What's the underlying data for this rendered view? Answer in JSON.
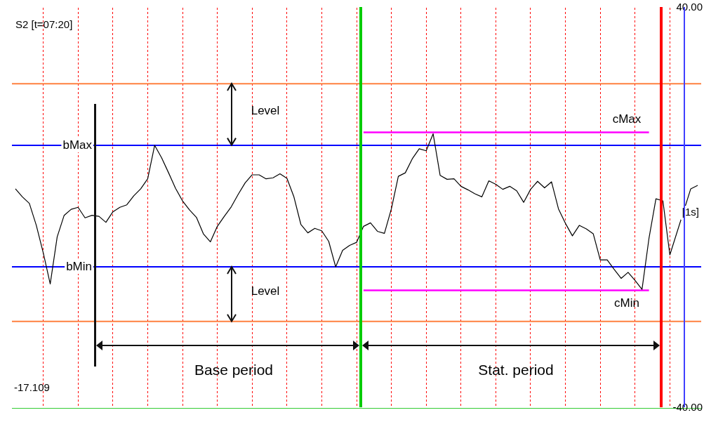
{
  "chart_data": {
    "type": "line",
    "categories": [
      null,
      null,
      null,
      null,
      null,
      null,
      null,
      null,
      null,
      null,
      null,
      null,
      null,
      null,
      null,
      null,
      null,
      null,
      null,
      null,
      null,
      null,
      null,
      null,
      null,
      null,
      null,
      null,
      null,
      null,
      null,
      null,
      null,
      null,
      null,
      null,
      null,
      null,
      null,
      null,
      null,
      null,
      null,
      null,
      null,
      null,
      null,
      null,
      null,
      null,
      null,
      null,
      null,
      null,
      null,
      null,
      null,
      null,
      null,
      null,
      null,
      null,
      null,
      null,
      null,
      null,
      null,
      null,
      null,
      null,
      null,
      null,
      null,
      null,
      null,
      null,
      null,
      null,
      null,
      null,
      null,
      null,
      null,
      null,
      null,
      null,
      null,
      null,
      null,
      null,
      null,
      null,
      null,
      null,
      null,
      null,
      null,
      null,
      null
    ],
    "ylim": [
      -40,
      40
    ],
    "yticks": [
      {
        "value": 40,
        "label": "40.00"
      },
      {
        "value": -40,
        "label": "-40.00"
      }
    ],
    "tick_labels": "y",
    "grid": "x",
    "legend": false,
    "marker": "none",
    "series": [
      {
        "color": "#000000",
        "values": [
          3.8,
          2.2,
          0.9,
          -3.5,
          -9.0,
          -15.2,
          -5.8,
          -1.5,
          -0.3,
          0.1,
          -2.0,
          -1.5,
          -1.7,
          -2.9,
          -0.8,
          0.1,
          0.6,
          2.4,
          3.8,
          5.8,
          12.5,
          10.0,
          7.0,
          3.9,
          1.4,
          -0.4,
          -1.9,
          -5.2,
          -6.8,
          -3.7,
          -1.7,
          0.2,
          2.7,
          5.0,
          6.6,
          6.6,
          5.8,
          6.0,
          6.8,
          5.9,
          2.2,
          -3.3,
          -5.0,
          -4.1,
          -4.6,
          -6.7,
          -11.8,
          -8.5,
          -7.5,
          -6.9,
          -3.7,
          -3.0,
          -4.7,
          -5.1,
          -0.2,
          6.3,
          7.0,
          9.8,
          11.8,
          11.4,
          14.8,
          6.5,
          5.7,
          5.8,
          4.3,
          3.6,
          2.8,
          2.2,
          5.4,
          4.7,
          3.7,
          4.3,
          3.4,
          1.1,
          3.7,
          5.3,
          4.0,
          5.2,
          -0.2,
          -3.1,
          -5.6,
          -3.5,
          -4.2,
          -5.2,
          -10.4,
          -10.4,
          -12.3,
          -14.1,
          -12.9,
          -14.5,
          -16.3,
          -6.1,
          1.8,
          1.4,
          -9.4,
          null,
          null,
          3.8,
          4.5
        ]
      },
      {
        "color": "#ff00ff",
        "values": [
          null,
          null,
          null,
          null,
          null,
          null,
          null,
          null,
          null,
          null,
          null,
          null,
          null,
          null,
          null,
          null,
          null,
          null,
          null,
          null,
          null,
          null,
          null,
          null,
          null,
          null,
          null,
          null,
          null,
          null,
          null,
          null,
          null,
          null,
          null,
          null,
          null,
          null,
          null,
          null,
          null,
          null,
          null,
          null,
          null,
          null,
          null,
          null,
          null,
          null,
          15.1,
          15.1,
          15.1,
          15.1,
          15.1,
          15.1,
          15.1,
          15.1,
          15.1,
          15.1,
          15.1,
          15.1,
          15.1,
          15.1,
          15.1,
          15.1,
          15.1,
          15.1,
          15.1,
          15.1,
          15.1,
          15.1,
          15.1,
          15.1,
          15.1,
          15.1,
          15.1,
          15.1,
          15.1,
          15.1,
          15.1,
          15.1,
          15.1,
          15.1,
          15.1,
          15.1,
          15.1,
          15.1,
          15.1,
          15.1,
          15.1,
          15.1,
          null,
          null,
          null,
          null,
          null,
          null,
          null
        ]
      },
      {
        "color": "#ff00ff",
        "values": [
          null,
          null,
          null,
          null,
          null,
          null,
          null,
          null,
          null,
          null,
          null,
          null,
          null,
          null,
          null,
          null,
          null,
          null,
          null,
          null,
          null,
          null,
          null,
          null,
          null,
          null,
          null,
          null,
          null,
          null,
          null,
          null,
          null,
          null,
          null,
          null,
          null,
          null,
          null,
          null,
          null,
          null,
          null,
          null,
          null,
          null,
          null,
          null,
          null,
          null,
          -16.5,
          -16.5,
          -16.5,
          -16.5,
          -16.5,
          -16.5,
          -16.5,
          -16.5,
          -16.5,
          -16.5,
          -16.5,
          -16.5,
          -16.5,
          -16.5,
          -16.5,
          -16.5,
          -16.5,
          -16.5,
          -16.5,
          -16.5,
          -16.5,
          -16.5,
          -16.5,
          -16.5,
          -16.5,
          -16.5,
          -16.5,
          -16.5,
          -16.5,
          -16.5,
          -16.5,
          -16.5,
          -16.5,
          -16.5,
          -16.5,
          -16.5,
          -16.5,
          -16.5,
          -16.5,
          -16.5,
          -16.5,
          -16.5,
          null,
          null,
          null,
          null,
          null,
          null,
          null
        ]
      }
    ],
    "ref_lines": [
      {
        "axis": "y",
        "value": 24.8,
        "color": "#ff8040"
      },
      {
        "axis": "y",
        "value": 12.5,
        "color": "#0000ff",
        "label": "bMax"
      },
      {
        "axis": "y",
        "value": -11.8,
        "color": "#0000ff",
        "label": "bMin"
      },
      {
        "axis": "y",
        "value": -22.7,
        "color": "#ff8040"
      }
    ],
    "annotations": [
      "S2 [t=07:20]",
      "-17.109",
      "[1s]",
      "cMax",
      "cMin",
      "Level",
      "Level",
      "Base period",
      "Stat. period"
    ]
  }
}
